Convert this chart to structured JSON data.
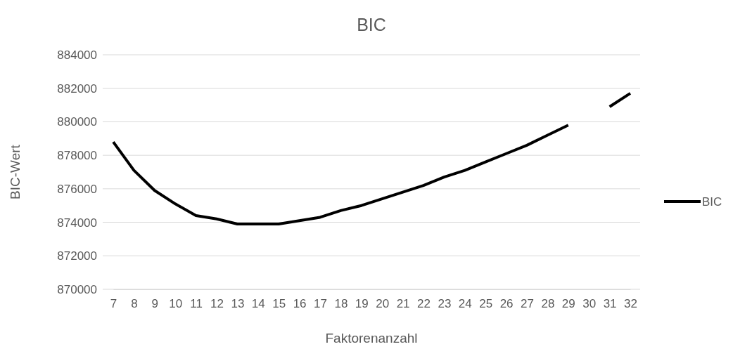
{
  "chart_data": {
    "type": "line",
    "title": "BIC",
    "xlabel": "Faktorenanzahl",
    "ylabel": "BIC-Wert",
    "categories": [
      "7",
      "8",
      "9",
      "10",
      "11",
      "12",
      "13",
      "14",
      "15",
      "16",
      "17",
      "18",
      "19",
      "20",
      "21",
      "22",
      "23",
      "24",
      "25",
      "26",
      "27",
      "28",
      "29",
      "30",
      "31",
      "32"
    ],
    "series": [
      {
        "name": "BIC",
        "color": "#000000",
        "values": [
          878800,
          877100,
          875900,
          875100,
          874400,
          874200,
          873900,
          873900,
          873900,
          874100,
          874300,
          874700,
          875000,
          875400,
          875800,
          876200,
          876700,
          877100,
          877600,
          878100,
          878600,
          879200,
          879800,
          null,
          880900,
          881700
        ]
      }
    ],
    "ylim": [
      870000,
      884000
    ],
    "yticks": [
      870000,
      872000,
      874000,
      876000,
      878000,
      880000,
      882000,
      884000
    ],
    "grid": "y",
    "legend": "right",
    "marker": "none",
    "line_style": "solid"
  }
}
